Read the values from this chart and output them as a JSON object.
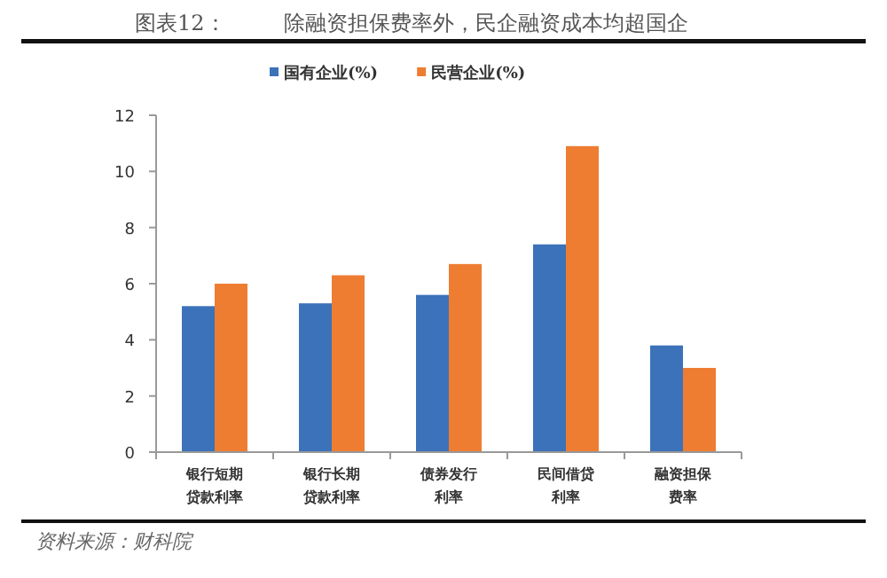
{
  "chart_data": {
    "type": "bar",
    "title": "图表12：",
    "subtitle": "除融资担保费率外，民企融资成本均超国企",
    "categories": [
      "银行短期贷款利率",
      "银行长期贷款利率",
      "债券发行利率",
      "民间借贷利率",
      "融资担保费率"
    ],
    "series": [
      {
        "name": "国有企业(%)",
        "color": "#3b72b9",
        "values": [
          5.2,
          5.3,
          5.6,
          7.4,
          3.8
        ]
      },
      {
        "name": "民营企业(%)",
        "color": "#ee7d32",
        "values": [
          6.0,
          6.3,
          6.7,
          10.9,
          3.0
        ]
      }
    ],
    "ylim": [
      0,
      12
    ],
    "yticks": [
      0,
      2,
      4,
      6,
      8,
      10,
      12
    ],
    "legend": "top",
    "grid": false,
    "annotations": [
      "资料来源：财科院"
    ]
  }
}
